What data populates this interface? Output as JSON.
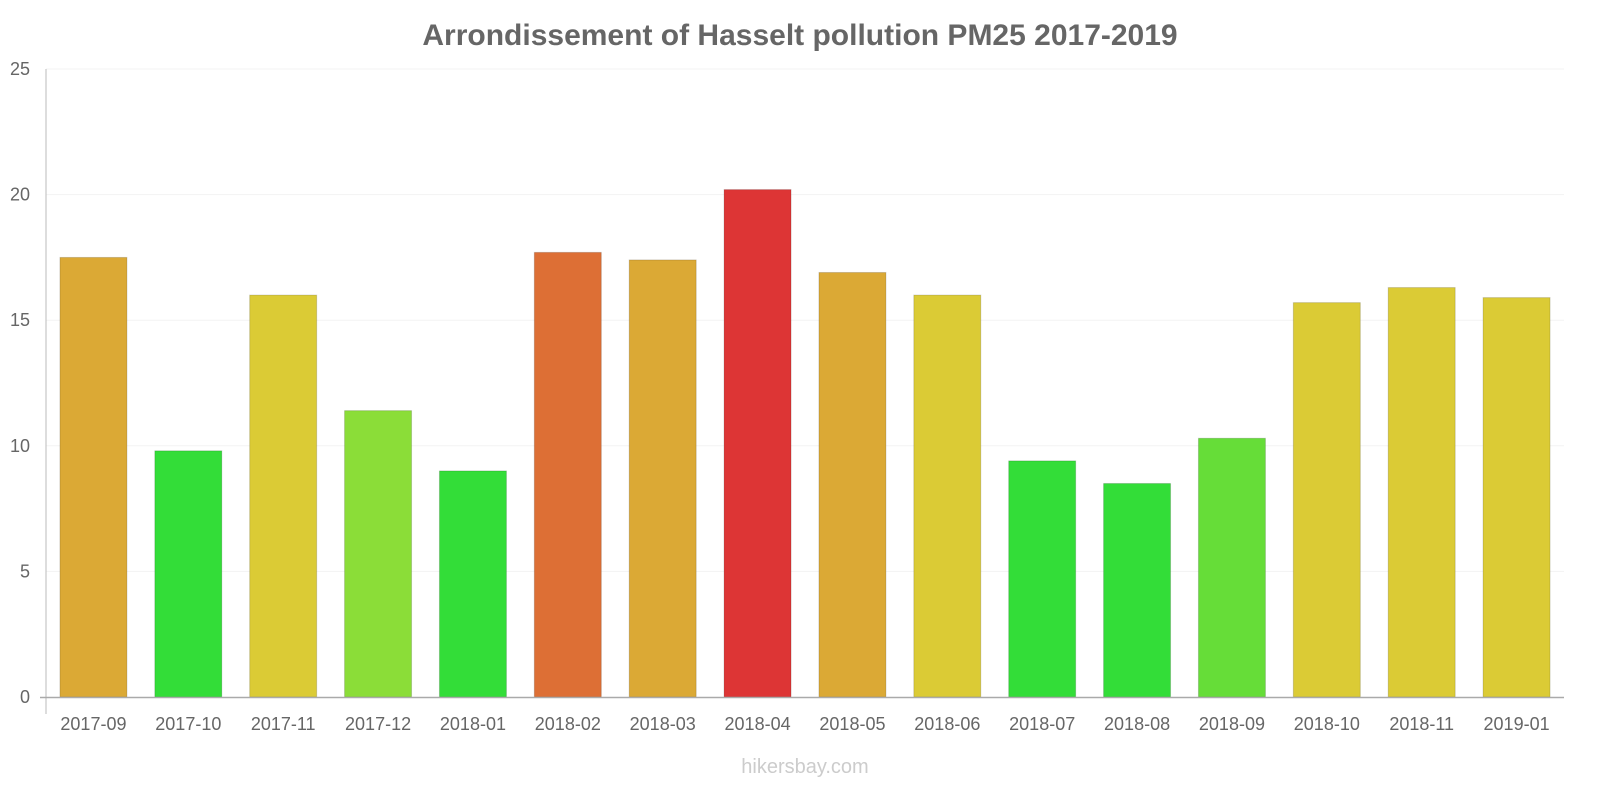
{
  "chart_data": {
    "type": "bar",
    "title": "Arrondissement of Hasselt pollution PM25 2017-2019",
    "xlabel": "",
    "ylabel": "",
    "ylim": [
      0,
      25
    ],
    "yticks": [
      0,
      5,
      10,
      15,
      20,
      25
    ],
    "grid": true,
    "categories": [
      "2017-09",
      "2017-10",
      "2017-11",
      "2017-12",
      "2018-01",
      "2018-02",
      "2018-03",
      "2018-04",
      "2018-05",
      "2018-06",
      "2018-07",
      "2018-08",
      "2018-09",
      "2018-10",
      "2018-11",
      "2019-01"
    ],
    "values": [
      17.5,
      9.8,
      16,
      11.4,
      9.0,
      17.7,
      17.4,
      20.2,
      16.9,
      16,
      9.4,
      8.5,
      10.3,
      15.7,
      16.3,
      15.9
    ],
    "colors": [
      "#dba935",
      "#33dd38",
      "#dbcb35",
      "#8bdd38",
      "#33dd38",
      "#dd6f35",
      "#dba935",
      "#dd3535",
      "#dba935",
      "#dbcb35",
      "#33dd38",
      "#33dd38",
      "#66dd38",
      "#dbcb35",
      "#dbcb35",
      "#dbcb35"
    ]
  },
  "watermark": "hikersbay.com"
}
